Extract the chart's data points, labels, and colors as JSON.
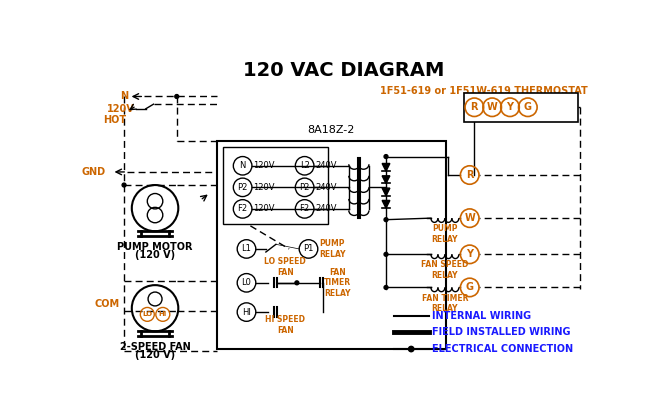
{
  "title": "120 VAC DIAGRAM",
  "bg_color": "#ffffff",
  "orange_color": "#cc6600",
  "blue_color": "#1a1aff",
  "black": "#000000",
  "thermostat_label": "1F51-619 or 1F51W-619 THERMOSTAT",
  "control_box_label": "8A18Z-2",
  "legend_items": [
    {
      "label": "INTERNAL WIRING"
    },
    {
      "label": "FIELD INSTALLED WIRING"
    },
    {
      "label": "ELECTRICAL CONNECTION"
    }
  ],
  "terminal_labels": [
    "R",
    "W",
    "Y",
    "G"
  ],
  "pump_motor_label1": "PUMP MOTOR",
  "pump_motor_label2": "(120 V)",
  "fan_label1": "2-SPEED FAN",
  "fan_label2": "(120 V)",
  "left_terminals": [
    "N",
    "P2",
    "F2"
  ],
  "right_terminals": [
    "L2",
    "P2",
    "F2"
  ],
  "left_voltages": [
    "120V",
    "120V",
    "120V"
  ],
  "right_voltages": [
    "240V",
    "240V",
    "240V"
  ],
  "pump_relay_label": "PUMP\nRELAY",
  "fan_speed_relay_label": "FAN SPEED\nRELAY",
  "fan_timer_relay_label": "FAN TIMER\nRELAY",
  "lo_speed_label": "LO SPEED\nFAN",
  "hi_speed_label": "HI SPEED\nFAN",
  "fan_timer_relay_bottom": "FAN\nTIMER\nRELAY",
  "pump_relay_bottom": "PUMP\nRELAY",
  "com_label": "COM",
  "gnd_label": "GND",
  "hot_label": "HOT",
  "n_label": "N",
  "v120": "120V"
}
